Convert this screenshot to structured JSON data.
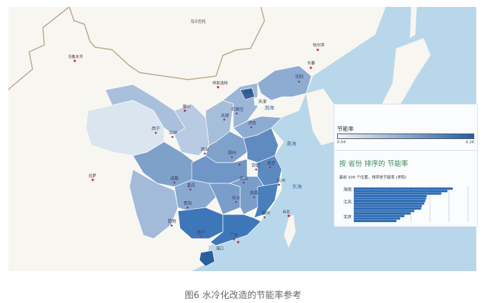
{
  "map": {
    "colors": {
      "ocean": "#b9d7ea",
      "land": "#f8f6f0",
      "border": "#b8a98a",
      "low": "#dce6ef",
      "high": "#2f6db3"
    },
    "labels": {
      "urumqi": "乌鲁木齐",
      "ulaanbaatar": "乌兰巴托",
      "hohhot": "呼和浩特",
      "harbin": "哈尔滨",
      "changchun": "长春",
      "shenyang": "沈阳",
      "beijing": "北京",
      "tianjin": "天津",
      "yinchuan": "银川",
      "taiyuan": "太原",
      "shijiazhuang": "石家庄",
      "xining": "西宁",
      "lanzhou": "兰州",
      "jinan": "济南",
      "xian": "西安",
      "zhengzhou": "郑州",
      "hefei": "合肥",
      "nanjing": "南京",
      "chengdu": "成都",
      "chongqing": "重庆",
      "wuhan": "武汉",
      "hangzhou": "杭州",
      "changsha": "长沙",
      "nanchang": "南昌",
      "guiyang": "贵阳",
      "fuzhou": "福州",
      "kunming": "昆明",
      "nanning": "南宁",
      "guangzhou": "广州",
      "haikou": "海口",
      "lhasa": "拉萨",
      "taipei": "台北",
      "bohai": "渤海",
      "yellow_sea": "黄海",
      "east_sea": "东海"
    }
  },
  "legend": {
    "title": "节能率",
    "min": "0.04",
    "max": "0.26",
    "min_value": 0.04,
    "max_value": 0.26
  },
  "chart_data": {
    "type": "bar",
    "orientation": "horizontal",
    "title": "按 省份 排序的 节能率",
    "subtitle": "最前 100 个位置，排序依节能率 (求和)",
    "categories": [
      "海南",
      "",
      "",
      "",
      "",
      "江苏",
      "",
      "",
      "",
      "",
      "",
      "北京",
      "",
      ""
    ],
    "values": [
      0.26,
      0.246,
      0.23,
      0.192,
      0.19,
      0.188,
      0.185,
      0.179,
      0.177,
      0.159,
      0.149,
      0.133,
      0.122,
      0.112
    ],
    "xticks": [
      "0",
      "0.05",
      "0.1",
      "0.15",
      "0.2",
      "0.25",
      "0.3"
    ],
    "xlim": [
      0,
      0.3
    ],
    "grid": true,
    "bar_color": "#2e6db4"
  },
  "caption": "图6 水冷化改造的节能率参考"
}
